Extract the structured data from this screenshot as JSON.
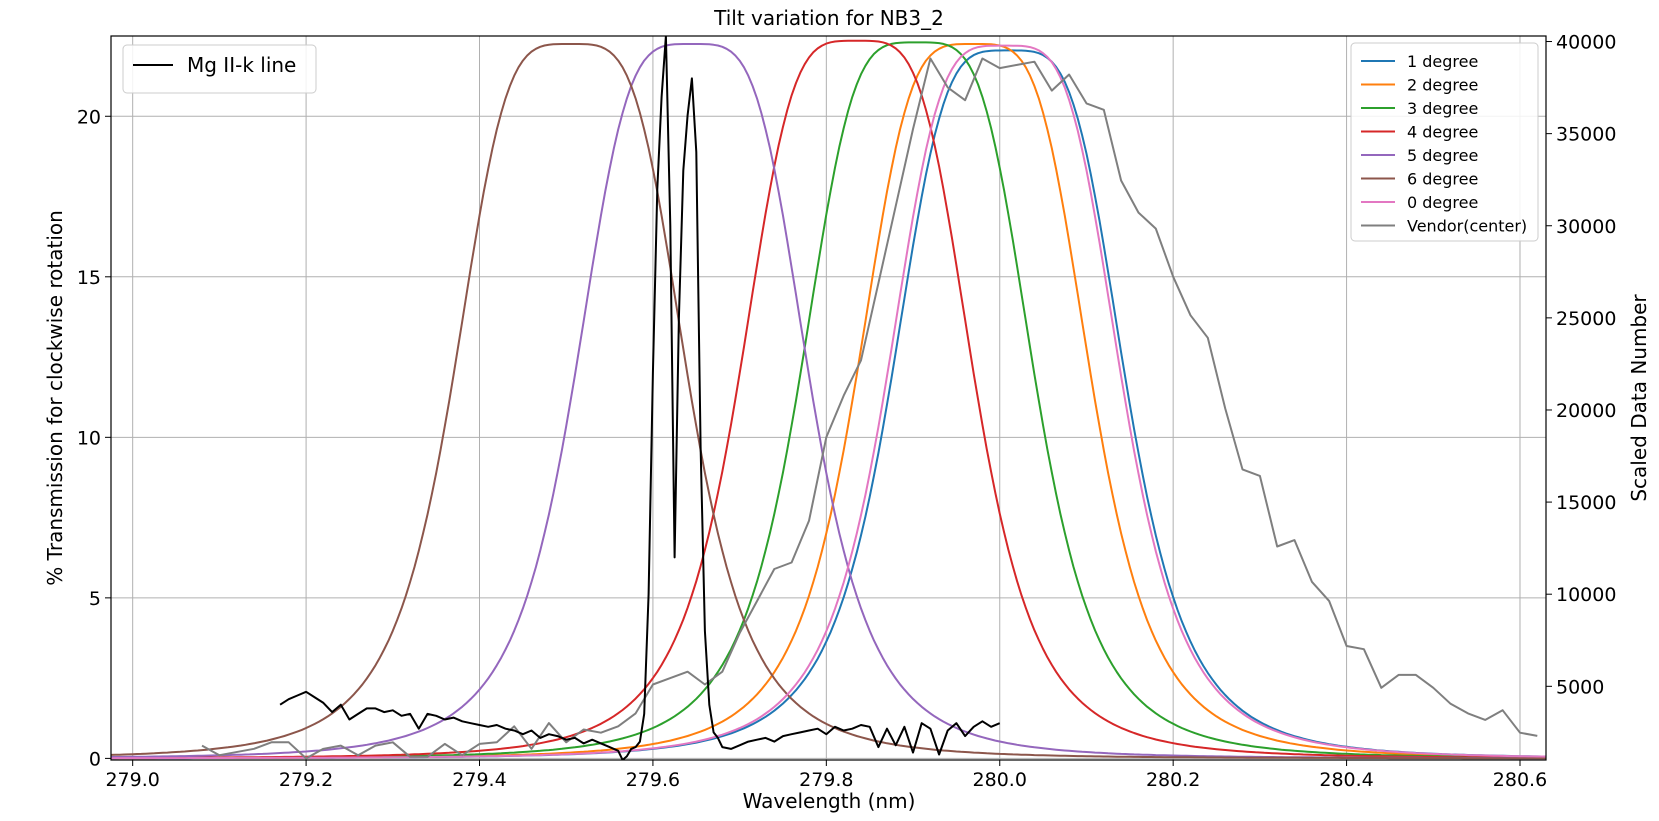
{
  "chart_data": {
    "type": "line",
    "title": "Tilt variation for NB3_2",
    "xlabel": "Wavelength (nm)",
    "ylabel": "% Transmission for clockwise rotation",
    "y2label": "Scaled Data Number",
    "xlim": [
      278.975,
      280.63
    ],
    "ylim": [
      -0.05,
      22.5
    ],
    "y2lim": [
      1000,
      40300
    ],
    "xticks": [
      279.0,
      279.2,
      279.4,
      279.6,
      279.8,
      280.0,
      280.2,
      280.4,
      280.6
    ],
    "xticklabels": [
      "279.0",
      "279.2",
      "279.4",
      "279.6",
      "279.8",
      "280.0",
      "280.2",
      "280.4",
      "280.6"
    ],
    "yticks": [
      0,
      5,
      10,
      15,
      20
    ],
    "yticklabels": [
      "0",
      "5",
      "10",
      "15",
      "20"
    ],
    "y2ticks": [
      5000,
      10000,
      15000,
      20000,
      25000,
      30000,
      35000,
      40000
    ],
    "y2ticklabels": [
      "5000",
      "10000",
      "15000",
      "20000",
      "25000",
      "30000",
      "35000",
      "40000"
    ],
    "grid": true,
    "legend_left_placement": "top-left",
    "legend_right_placement": "top-right",
    "series": [
      {
        "name": "1 degree",
        "color": "#1f77b4",
        "axis": "left",
        "center": 280.01,
        "peak": 22.05,
        "width": 0.14
      },
      {
        "name": "2 degree",
        "color": "#ff7f0e",
        "axis": "left",
        "center": 279.97,
        "peak": 22.25,
        "width": 0.14
      },
      {
        "name": "3 degree",
        "color": "#2ca02c",
        "axis": "left",
        "center": 279.905,
        "peak": 22.3,
        "width": 0.14
      },
      {
        "name": "4 degree",
        "color": "#d62728",
        "axis": "left",
        "center": 279.835,
        "peak": 22.35,
        "width": 0.14
      },
      {
        "name": "5 degree",
        "color": "#9467bd",
        "axis": "left",
        "center": 279.645,
        "peak": 22.25,
        "width": 0.14
      },
      {
        "name": "6 degree",
        "color": "#8c564b",
        "axis": "left",
        "center": 279.505,
        "peak": 22.25,
        "width": 0.14
      },
      {
        "name": "0 degree",
        "color": "#e377c2",
        "axis": "left",
        "center": 280.005,
        "peak": 22.2,
        "width": 0.14
      },
      {
        "name": "Vendor(center)",
        "color": "#7f7f7f",
        "axis": "left",
        "x": [
          279.08,
          279.1,
          279.14,
          279.16,
          279.18,
          279.2,
          279.22,
          279.24,
          279.26,
          279.28,
          279.3,
          279.32,
          279.34,
          279.36,
          279.38,
          279.4,
          279.42,
          279.44,
          279.46,
          279.48,
          279.5,
          279.52,
          279.54,
          279.56,
          279.58,
          279.6,
          279.62,
          279.64,
          279.66,
          279.68,
          279.7,
          279.72,
          279.74,
          279.76,
          279.78,
          279.8,
          279.82,
          279.84,
          279.86,
          279.88,
          279.9,
          279.92,
          279.94,
          279.96,
          279.98,
          280.0,
          280.02,
          280.04,
          280.06,
          280.08,
          280.1,
          280.12,
          280.14,
          280.16,
          280.18,
          280.2,
          280.22,
          280.24,
          280.26,
          280.28,
          280.3,
          280.32,
          280.34,
          280.36,
          280.38,
          280.4,
          280.42,
          280.44,
          280.46,
          280.48,
          280.5,
          280.52,
          280.54,
          280.56,
          280.58,
          280.6,
          280.62
        ],
        "y": [
          0.4,
          0.1,
          0.3,
          0.5,
          0.5,
          0.0,
          0.3,
          0.4,
          0.1,
          0.4,
          0.5,
          0.05,
          0.05,
          0.45,
          0.1,
          0.45,
          0.5,
          1.0,
          0.3,
          1.1,
          0.5,
          0.9,
          0.8,
          1.0,
          1.4,
          2.3,
          2.5,
          2.7,
          2.3,
          2.7,
          3.9,
          4.9,
          5.9,
          6.1,
          7.4,
          10.0,
          11.3,
          12.4,
          14.8,
          17.2,
          19.6,
          21.8,
          20.9,
          20.5,
          21.8,
          21.5,
          21.6,
          21.7,
          20.8,
          21.3,
          20.4,
          20.2,
          18.0,
          17.0,
          16.5,
          15.0,
          13.8,
          13.1,
          10.9,
          9.0,
          8.8,
          6.6,
          6.8,
          5.5,
          4.9,
          3.5,
          3.4,
          2.2,
          2.6,
          2.6,
          2.2,
          1.7,
          1.4,
          1.2,
          1.5,
          0.8,
          0.7
        ]
      },
      {
        "name": "Mg II-k line",
        "color": "#000000",
        "axis": "right",
        "x": [
          279.17,
          279.18,
          279.19,
          279.2,
          279.21,
          279.22,
          279.23,
          279.24,
          279.25,
          279.26,
          279.27,
          279.28,
          279.29,
          279.3,
          279.31,
          279.32,
          279.33,
          279.34,
          279.35,
          279.36,
          279.37,
          279.38,
          279.39,
          279.4,
          279.41,
          279.42,
          279.43,
          279.44,
          279.45,
          279.46,
          279.47,
          279.48,
          279.49,
          279.5,
          279.51,
          279.52,
          279.53,
          279.54,
          279.55,
          279.56,
          279.565,
          279.57,
          279.575,
          279.58,
          279.585,
          279.59,
          279.595,
          279.6,
          279.605,
          279.61,
          279.615,
          279.62,
          279.625,
          279.63,
          279.635,
          279.64,
          279.645,
          279.65,
          279.655,
          279.66,
          279.665,
          279.67,
          279.675,
          279.68,
          279.69,
          279.7,
          279.71,
          279.72,
          279.73,
          279.74,
          279.75,
          279.76,
          279.77,
          279.78,
          279.79,
          279.8,
          279.81,
          279.82,
          279.83,
          279.84,
          279.85,
          279.86,
          279.87,
          279.88,
          279.89,
          279.9,
          279.91,
          279.92,
          279.93,
          279.94,
          279.95,
          279.96,
          279.97,
          279.98,
          279.99,
          280.0
        ],
        "y": [
          4000,
          4300,
          4500,
          4700,
          4400,
          4100,
          3600,
          4000,
          3200,
          3500,
          3800,
          3800,
          3600,
          3700,
          3400,
          3500,
          2700,
          3500,
          3400,
          3200,
          3300,
          3100,
          3000,
          2900,
          2800,
          2900,
          2700,
          2600,
          2400,
          2600,
          2200,
          2400,
          2300,
          2100,
          2200,
          1900,
          2100,
          1900,
          1700,
          1500,
          1000,
          1200,
          1600,
          1700,
          2000,
          3500,
          10000,
          22000,
          32000,
          37000,
          40300,
          30000,
          12000,
          25000,
          33000,
          36000,
          38000,
          34000,
          18000,
          8000,
          4000,
          2500,
          2200,
          1700,
          1600,
          1800,
          2000,
          2100,
          2200,
          2000,
          2300,
          2400,
          2500,
          2600,
          2700,
          2400,
          2800,
          2600,
          2700,
          2900,
          2800,
          1700,
          2700,
          1800,
          2800,
          1400,
          3000,
          2700,
          1300,
          2600,
          3000,
          2300,
          2800,
          3100,
          2800,
          3000
        ]
      }
    ]
  }
}
